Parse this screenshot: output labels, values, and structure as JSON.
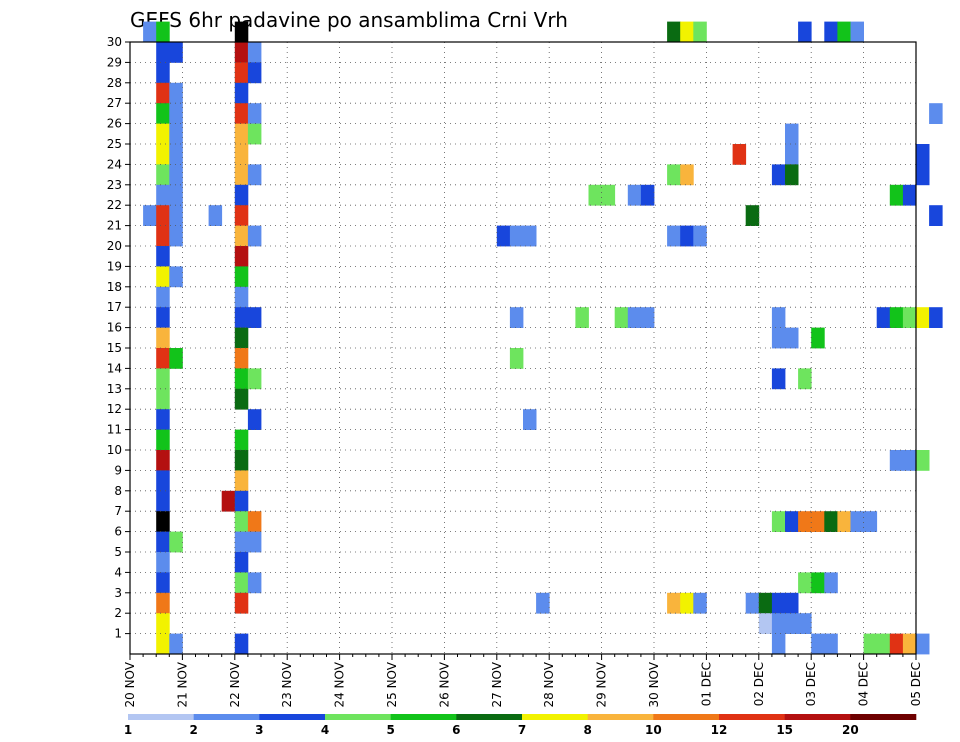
{
  "chart_data": {
    "type": "heatmap",
    "title": "GEFS 6hr padavine po ansamblima Crni Vrh",
    "xlabel": "",
    "ylabel": "",
    "x_range": [
      "20 NOV",
      "05 DEC"
    ],
    "x_tick_labels": [
      "20 NOV",
      "21 NOV",
      "22 NOV",
      "23 NOV",
      "24 NOV",
      "25 NOV",
      "26 NOV",
      "27 NOV",
      "28 NOV",
      "29 NOV",
      "30 NOV",
      "01 DEC",
      "02 DEC",
      "03 DEC",
      "04 DEC",
      "05 DEC"
    ],
    "y_tick_labels": [
      "1",
      "2",
      "3",
      "4",
      "5",
      "6",
      "7",
      "8",
      "9",
      "10",
      "11",
      "12",
      "13",
      "14",
      "15",
      "16",
      "17",
      "18",
      "19",
      "20",
      "21",
      "22",
      "23",
      "24",
      "25",
      "26",
      "27",
      "28",
      "29",
      "30"
    ],
    "y_range": [
      0,
      30
    ],
    "grid": true,
    "steps_per_day": 4,
    "colorbar": {
      "labels": [
        "1",
        "2",
        "3",
        "4",
        "5",
        "6",
        "7",
        "8",
        "10",
        "12",
        "15",
        "20"
      ],
      "colors": [
        "#b3c6f2",
        "#5c8ced",
        "#1846dc",
        "#6ee45e",
        "#12c31a",
        "#0a6b12",
        "#f2f200",
        "#f9b43c",
        "#f07818",
        "#e03214",
        "#b41010",
        "#6e0000"
      ]
    },
    "cells": [
      [
        1,
        30,
        1
      ],
      [
        1,
        21,
        1
      ],
      [
        2,
        30,
        4
      ],
      [
        2,
        29,
        2
      ],
      [
        2,
        28,
        2
      ],
      [
        2,
        27,
        9
      ],
      [
        2,
        26,
        4
      ],
      [
        2,
        25,
        6
      ],
      [
        2,
        24,
        6
      ],
      [
        2,
        23,
        3
      ],
      [
        2,
        22,
        1
      ],
      [
        2,
        21,
        9
      ],
      [
        2,
        20,
        9
      ],
      [
        2,
        19,
        2
      ],
      [
        2,
        18,
        6
      ],
      [
        2,
        17,
        1
      ],
      [
        2,
        16,
        2
      ],
      [
        2,
        15,
        7
      ],
      [
        2,
        14,
        9
      ],
      [
        2,
        13,
        3
      ],
      [
        2,
        12,
        3
      ],
      [
        2,
        11,
        2
      ],
      [
        2,
        10,
        4
      ],
      [
        2,
        9,
        10
      ],
      [
        2,
        8,
        2
      ],
      [
        2,
        7,
        2
      ],
      [
        2,
        6,
        12
      ],
      [
        2,
        5,
        2
      ],
      [
        2,
        4,
        1
      ],
      [
        2,
        3,
        2
      ],
      [
        2,
        2,
        8
      ],
      [
        2,
        1,
        6
      ],
      [
        2,
        0,
        6
      ],
      [
        3,
        29,
        2
      ],
      [
        3,
        27,
        1
      ],
      [
        3,
        26,
        1
      ],
      [
        3,
        25,
        1
      ],
      [
        3,
        24,
        1
      ],
      [
        3,
        23,
        1
      ],
      [
        3,
        22,
        1
      ],
      [
        3,
        21,
        1
      ],
      [
        3,
        20,
        1
      ],
      [
        3,
        18,
        1
      ],
      [
        3,
        14,
        4
      ],
      [
        3,
        5,
        3
      ],
      [
        3,
        0,
        1
      ],
      [
        6,
        21,
        1
      ],
      [
        7,
        7,
        10
      ],
      [
        8,
        30,
        12
      ],
      [
        8,
        29,
        10
      ],
      [
        8,
        28,
        9
      ],
      [
        8,
        27,
        2
      ],
      [
        8,
        26,
        9
      ],
      [
        8,
        25,
        7
      ],
      [
        8,
        24,
        7
      ],
      [
        8,
        23,
        7
      ],
      [
        8,
        22,
        2
      ],
      [
        8,
        21,
        9
      ],
      [
        8,
        20,
        7
      ],
      [
        8,
        19,
        10
      ],
      [
        8,
        18,
        4
      ],
      [
        8,
        17,
        1
      ],
      [
        8,
        16,
        2
      ],
      [
        8,
        15,
        5
      ],
      [
        8,
        14,
        8
      ],
      [
        8,
        13,
        4
      ],
      [
        8,
        12,
        5
      ],
      [
        8,
        10,
        4
      ],
      [
        8,
        9,
        5
      ],
      [
        8,
        8,
        7
      ],
      [
        8,
        7,
        2
      ],
      [
        8,
        6,
        3
      ],
      [
        8,
        5,
        1
      ],
      [
        8,
        4,
        2
      ],
      [
        8,
        3,
        3
      ],
      [
        8,
        2,
        9
      ],
      [
        8,
        0,
        2
      ],
      [
        9,
        29,
        1
      ],
      [
        9,
        28,
        2
      ],
      [
        9,
        26,
        1
      ],
      [
        9,
        25,
        3
      ],
      [
        9,
        23,
        1
      ],
      [
        9,
        20,
        1
      ],
      [
        9,
        16,
        2
      ],
      [
        9,
        13,
        3
      ],
      [
        9,
        11,
        2
      ],
      [
        9,
        6,
        8
      ],
      [
        9,
        5,
        1
      ],
      [
        9,
        3,
        1
      ],
      [
        28,
        20,
        2
      ],
      [
        29,
        20,
        1
      ],
      [
        29,
        16,
        1
      ],
      [
        29,
        14,
        3
      ],
      [
        30,
        20,
        1
      ],
      [
        30,
        11,
        1
      ],
      [
        31,
        2,
        1
      ],
      [
        34,
        16,
        3
      ],
      [
        35,
        22,
        3
      ],
      [
        36,
        22,
        3
      ],
      [
        37,
        16,
        3
      ],
      [
        38,
        22,
        1
      ],
      [
        38,
        16,
        1
      ],
      [
        39,
        22,
        2
      ],
      [
        39,
        16,
        1
      ],
      [
        41,
        30,
        5
      ],
      [
        41,
        23,
        3
      ],
      [
        41,
        20,
        1
      ],
      [
        41,
        2,
        7
      ],
      [
        42,
        30,
        6
      ],
      [
        42,
        23,
        7
      ],
      [
        42,
        20,
        2
      ],
      [
        42,
        2,
        6
      ],
      [
        43,
        30,
        3
      ],
      [
        43,
        20,
        1
      ],
      [
        43,
        2,
        1
      ],
      [
        46,
        24,
        9
      ],
      [
        47,
        21,
        5
      ],
      [
        47,
        2,
        1
      ],
      [
        48,
        2,
        5
      ],
      [
        48,
        1,
        0
      ],
      [
        49,
        23,
        2
      ],
      [
        49,
        16,
        1
      ],
      [
        49,
        15,
        1
      ],
      [
        49,
        13,
        2
      ],
      [
        49,
        6,
        3
      ],
      [
        49,
        2,
        2
      ],
      [
        49,
        1,
        1
      ],
      [
        49,
        0,
        1
      ],
      [
        50,
        25,
        1
      ],
      [
        50,
        24,
        1
      ],
      [
        50,
        23,
        5
      ],
      [
        50,
        15,
        1
      ],
      [
        50,
        6,
        2
      ],
      [
        50,
        2,
        2
      ],
      [
        50,
        1,
        1
      ],
      [
        51,
        30,
        2
      ],
      [
        51,
        13,
        3
      ],
      [
        51,
        6,
        8
      ],
      [
        51,
        3,
        3
      ],
      [
        51,
        1,
        1
      ],
      [
        52,
        15,
        4
      ],
      [
        52,
        6,
        8
      ],
      [
        52,
        3,
        4
      ],
      [
        52,
        0,
        1
      ],
      [
        53,
        30,
        2
      ],
      [
        53,
        6,
        5
      ],
      [
        53,
        3,
        1
      ],
      [
        53,
        0,
        1
      ],
      [
        54,
        30,
        4
      ],
      [
        54,
        6,
        7
      ],
      [
        55,
        30,
        1
      ],
      [
        55,
        6,
        1
      ],
      [
        56,
        6,
        1
      ],
      [
        56,
        0,
        3
      ],
      [
        57,
        16,
        2
      ],
      [
        57,
        0,
        3
      ],
      [
        58,
        22,
        4
      ],
      [
        58,
        16,
        4
      ],
      [
        58,
        9,
        1
      ],
      [
        58,
        0,
        9
      ],
      [
        59,
        22,
        2
      ],
      [
        59,
        16,
        3
      ],
      [
        59,
        9,
        1
      ],
      [
        59,
        0,
        7
      ],
      [
        60,
        24,
        2
      ],
      [
        60,
        23,
        2
      ],
      [
        60,
        16,
        6
      ],
      [
        60,
        9,
        3
      ],
      [
        60,
        0,
        1
      ],
      [
        61,
        26,
        1
      ],
      [
        61,
        21,
        2
      ],
      [
        61,
        16,
        2
      ]
    ]
  }
}
